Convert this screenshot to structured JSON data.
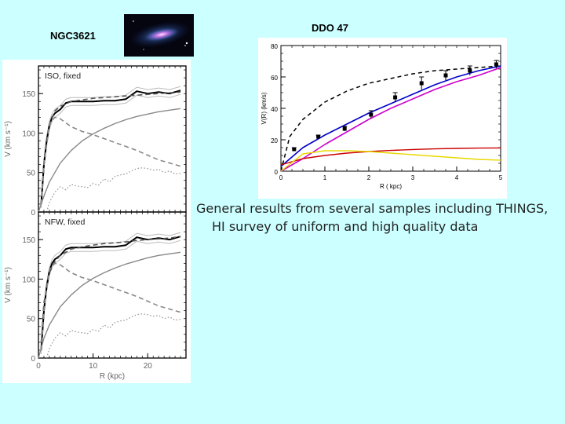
{
  "slide": {
    "ngc_label": "NGC3621",
    "ddo_label": "DDO 47",
    "caption_line1": "General results  from several samples including THINGS,",
    "caption_line2": "HI survey of uniform and high quality data"
  },
  "images": {
    "galaxy_thumbnail": "spiral galaxy NGC3621 photograph"
  },
  "colors": {
    "background": "#ccffff",
    "halo_fit": "#0000cc",
    "mond_fit": "#cc00cc",
    "dark_dashed": "#000000",
    "disk_red": "#cc0000",
    "gas_yellow": "#e8d800",
    "grey_model": "#888888"
  },
  "chart_data": [
    {
      "type": "line",
      "panel": "NGC3621 ISO, fixed",
      "annotation": "ISO, fixed",
      "xlabel": "",
      "ylabel": "V (km s⁻¹)",
      "xlim": [
        0,
        27
      ],
      "ylim": [
        0,
        185
      ],
      "xticks": [],
      "yticks": [
        0,
        50,
        100,
        150
      ],
      "grid": false,
      "series": [
        {
          "style": "solid-black-thick",
          "x": [
            0.5,
            1,
            1.5,
            2,
            2.5,
            3,
            4,
            5,
            6,
            8,
            10,
            12,
            14,
            16,
            18,
            20,
            22,
            24,
            26
          ],
          "y": [
            10,
            60,
            90,
            110,
            120,
            125,
            130,
            138,
            140,
            140,
            140,
            141,
            141,
            143,
            153,
            150,
            152,
            150,
            154
          ]
        },
        {
          "style": "dashed-dark",
          "x": [
            0.5,
            1,
            2,
            3,
            4,
            6,
            8,
            10,
            12,
            14,
            16,
            18,
            20,
            22,
            24,
            26
          ],
          "y": [
            10,
            60,
            110,
            128,
            134,
            140,
            142,
            144,
            145,
            146,
            147,
            148,
            149,
            150,
            151,
            152
          ]
        },
        {
          "style": "dashed-grey",
          "x": [
            0.5,
            1,
            2,
            3,
            4,
            5,
            6,
            8,
            10,
            12,
            14,
            16,
            18,
            20,
            22,
            24,
            26
          ],
          "y": [
            10,
            60,
            112,
            120,
            118,
            113,
            108,
            102,
            98,
            93,
            88,
            83,
            78,
            72,
            66,
            62,
            58
          ]
        },
        {
          "style": "solid-grey",
          "x": [
            0,
            1,
            2,
            4,
            6,
            8,
            10,
            12,
            14,
            16,
            18,
            20,
            22,
            24,
            26
          ],
          "y": [
            0,
            20,
            38,
            62,
            78,
            90,
            99,
            106,
            112,
            117,
            121,
            124,
            127,
            129,
            131
          ]
        },
        {
          "style": "dotted-grey",
          "x": [
            1.5,
            2,
            3,
            4,
            5,
            6,
            7,
            8,
            9,
            10,
            11,
            12,
            13,
            14,
            15,
            16,
            17,
            18,
            19,
            20,
            21,
            22,
            23,
            24,
            25,
            26
          ],
          "y": [
            0,
            12,
            25,
            32,
            28,
            35,
            33,
            32,
            31,
            36,
            34,
            42,
            38,
            45,
            47,
            48,
            52,
            55,
            56,
            55,
            53,
            54,
            50,
            52,
            48,
            49
          ]
        }
      ]
    },
    {
      "type": "line",
      "panel": "NGC3621 NFW, fixed",
      "annotation": "NFW, fixed",
      "xlabel": "R (kpc)",
      "ylabel": "V (km s⁻¹)",
      "xlim": [
        0,
        27
      ],
      "ylim": [
        0,
        185
      ],
      "xticks": [
        0,
        10,
        20
      ],
      "yticks": [
        0,
        50,
        100,
        150
      ],
      "grid": false,
      "series": [
        {
          "style": "solid-black-thick",
          "x": [
            0.5,
            1,
            1.5,
            2,
            2.5,
            3,
            4,
            5,
            6,
            8,
            10,
            12,
            14,
            16,
            18,
            20,
            22,
            24,
            26
          ],
          "y": [
            10,
            60,
            90,
            110,
            120,
            125,
            130,
            138,
            140,
            140,
            140,
            141,
            141,
            143,
            153,
            150,
            152,
            150,
            154
          ]
        },
        {
          "style": "dashed-dark",
          "x": [
            0.5,
            1,
            2,
            3,
            4,
            6,
            8,
            10,
            12,
            14,
            16,
            18,
            20,
            22,
            24,
            26
          ],
          "y": [
            20,
            70,
            108,
            122,
            130,
            138,
            141,
            143,
            145,
            146,
            147,
            149,
            150,
            151,
            152,
            154
          ]
        },
        {
          "style": "dashed-grey",
          "x": [
            0.5,
            1,
            2,
            3,
            4,
            5,
            6,
            8,
            10,
            12,
            14,
            16,
            18,
            20,
            22,
            24,
            26
          ],
          "y": [
            10,
            60,
            112,
            120,
            118,
            113,
            108,
            102,
            98,
            93,
            88,
            83,
            78,
            72,
            66,
            62,
            58
          ]
        },
        {
          "style": "solid-grey",
          "x": [
            0,
            1,
            2,
            4,
            6,
            8,
            10,
            12,
            14,
            16,
            18,
            20,
            22,
            24,
            26
          ],
          "y": [
            0,
            25,
            42,
            65,
            80,
            92,
            101,
            108,
            114,
            119,
            123,
            127,
            130,
            132,
            134
          ]
        },
        {
          "style": "dotted-grey",
          "x": [
            1.5,
            2,
            3,
            4,
            5,
            6,
            7,
            8,
            9,
            10,
            11,
            12,
            13,
            14,
            15,
            16,
            17,
            18,
            19,
            20,
            21,
            22,
            23,
            24,
            25,
            26
          ],
          "y": [
            0,
            12,
            25,
            32,
            28,
            35,
            33,
            32,
            31,
            36,
            34,
            42,
            38,
            45,
            47,
            48,
            52,
            55,
            56,
            55,
            53,
            54,
            50,
            52,
            48,
            49
          ]
        }
      ]
    },
    {
      "type": "scatter",
      "panel": "DDO 47",
      "xlabel": "R ( kpc)",
      "ylabel": "V(R) (km/s)",
      "xlim": [
        0,
        5
      ],
      "ylim": [
        0,
        80
      ],
      "xticks": [
        0,
        1,
        2,
        3,
        4,
        5
      ],
      "yticks": [
        0,
        20,
        40,
        60,
        80
      ],
      "grid": false,
      "points": {
        "x": [
          0.3,
          0.85,
          1.45,
          2.05,
          2.6,
          3.2,
          3.75,
          4.3,
          4.9
        ],
        "y": [
          14,
          22,
          27,
          36,
          47,
          56,
          61,
          64,
          68
        ],
        "err": [
          1,
          1,
          1.5,
          2.5,
          3,
          4,
          3,
          3,
          2.5
        ]
      },
      "series": [
        {
          "style": "dashed-black",
          "x": [
            0,
            0.2,
            0.5,
            1,
            1.5,
            2,
            2.5,
            3,
            3.5,
            4,
            4.5,
            5
          ],
          "y": [
            0,
            22,
            33,
            44,
            51,
            56,
            59,
            62,
            64,
            65,
            66,
            67
          ]
        },
        {
          "style": "solid-blue",
          "x": [
            0,
            0.5,
            1,
            1.5,
            2,
            2.5,
            3,
            3.5,
            4,
            4.5,
            5
          ],
          "y": [
            3,
            15,
            23,
            30,
            37,
            43,
            49,
            55,
            60,
            64,
            67
          ]
        },
        {
          "style": "solid-magenta",
          "x": [
            0,
            0.5,
            1,
            1.5,
            2,
            2.5,
            3,
            3.5,
            4,
            4.5,
            5
          ],
          "y": [
            0,
            8,
            17,
            25,
            33,
            40,
            46,
            52,
            57,
            61,
            66
          ]
        },
        {
          "style": "solid-red",
          "x": [
            0,
            0.5,
            1,
            1.5,
            2,
            2.5,
            3,
            3.5,
            4,
            4.5,
            5
          ],
          "y": [
            4,
            8,
            10,
            11.5,
            12.5,
            13.2,
            13.8,
            14.2,
            14.5,
            14.7,
            14.8
          ]
        },
        {
          "style": "solid-yellow",
          "x": [
            0,
            0.5,
            1,
            1.5,
            2,
            2.5,
            3,
            3.5,
            4,
            4.5,
            5
          ],
          "y": [
            0,
            11,
            13,
            13,
            12.5,
            11.5,
            10.5,
            9.5,
            8.5,
            7.5,
            7
          ]
        }
      ]
    }
  ]
}
